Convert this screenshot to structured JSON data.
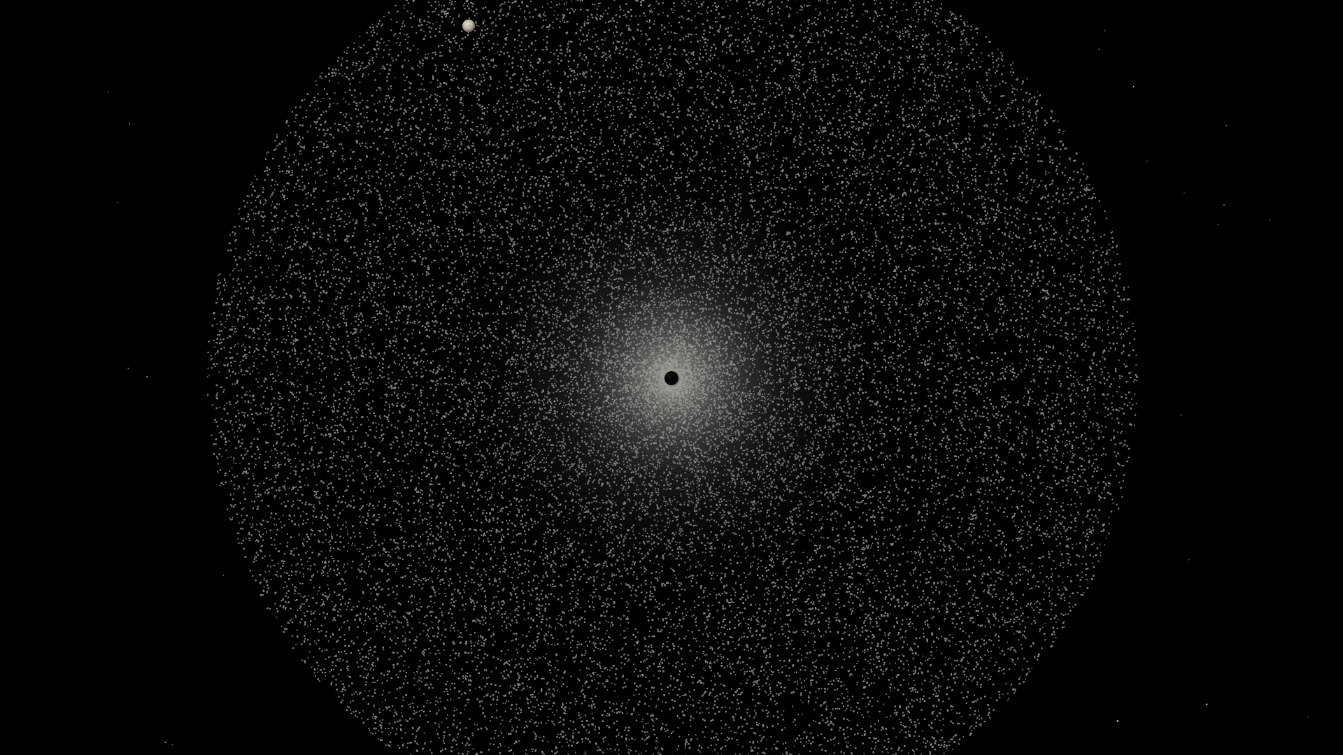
{
  "scene": {
    "description_free": true,
    "colors": {
      "background": "#000000",
      "particle": "#8d8d85",
      "core_glow": "#9fa19a",
      "central_hole": "#050505",
      "moon": "#b9b2a6",
      "background_star": "#d8d8d8"
    },
    "elements": {
      "particle_cloud": "particle-disk",
      "central_body": "black-core",
      "small_body": "moon",
      "background": "starfield"
    }
  }
}
